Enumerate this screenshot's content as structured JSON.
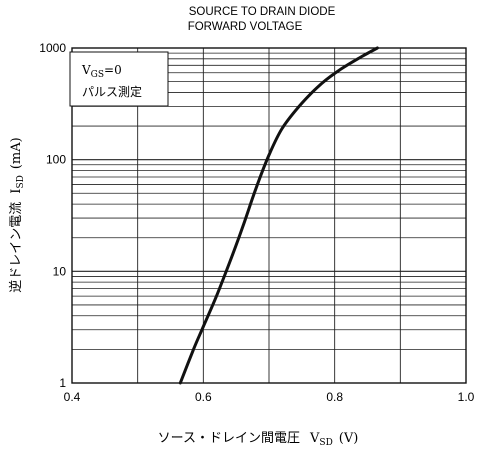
{
  "chart_data": {
    "type": "line",
    "title_lines": [
      "SOURCE TO DRAIN DIODE",
      "FORWARD VOLTAGE"
    ],
    "xlabel": {
      "text": "ソース・ドレイン間電圧",
      "symbol": "V",
      "sub": "SD",
      "unit": "(V)"
    },
    "ylabel": {
      "text": "逆ドレイン電流",
      "symbol": "I",
      "sub": "SD",
      "unit": "(mA)"
    },
    "xlim": [
      0.4,
      1.0
    ],
    "ylim": [
      1,
      1000
    ],
    "yscale": "log",
    "grid": true,
    "x_ticks": [
      "0.4",
      "0.6",
      "0.8",
      "1.0"
    ],
    "y_ticks": [
      "1",
      "10",
      "100",
      "1000"
    ],
    "annotation": {
      "line1_symbol": "V",
      "line1_sub": "GS",
      "line1_value": "=0",
      "line2": "パルス測定"
    },
    "series": [
      {
        "points": [
          [
            0.565,
            1
          ],
          [
            0.585,
            2
          ],
          [
            0.6,
            3.2
          ],
          [
            0.62,
            6
          ],
          [
            0.64,
            12
          ],
          [
            0.66,
            25
          ],
          [
            0.68,
            55
          ],
          [
            0.7,
            110
          ],
          [
            0.72,
            190
          ],
          [
            0.75,
            320
          ],
          [
            0.78,
            480
          ],
          [
            0.81,
            650
          ],
          [
            0.84,
            830
          ],
          [
            0.865,
            1000
          ]
        ]
      }
    ]
  }
}
